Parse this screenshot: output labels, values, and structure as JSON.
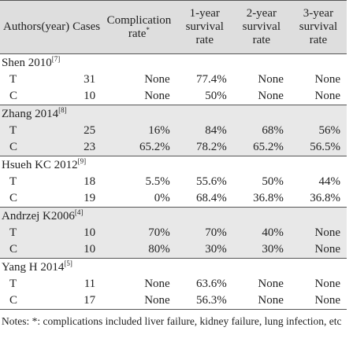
{
  "table": {
    "header": [
      {
        "text": "Authors(year)"
      },
      {
        "text": "Cases"
      },
      {
        "text": "Complication rate",
        "sup": "*"
      },
      {
        "text": "1-year survival rate"
      },
      {
        "text": "2-year survival rate"
      },
      {
        "text": "3-year survival rate"
      }
    ],
    "groups": [
      {
        "name": "Shen 2010",
        "ref": "[7]",
        "rows": [
          [
            "T",
            "31",
            "None",
            "77.4%",
            "None",
            "None"
          ],
          [
            "C",
            "10",
            "None",
            "50%",
            "None",
            "None"
          ]
        ]
      },
      {
        "name": "Zhang 2014",
        "ref": "[8]",
        "rows": [
          [
            "T",
            "25",
            "16%",
            "84%",
            "68%",
            "56%"
          ],
          [
            "C",
            "23",
            "65.2%",
            "78.2%",
            "65.2%",
            "56.5%"
          ]
        ]
      },
      {
        "name": "Hsueh KC 2012",
        "ref": "[9]",
        "rows": [
          [
            "T",
            "18",
            "5.5%",
            "55.6%",
            "50%",
            "44%"
          ],
          [
            "C",
            "19",
            "0%",
            "68.4%",
            "36.8%",
            "36.8%"
          ]
        ]
      },
      {
        "name": "Andrzej K2006",
        "ref": "[4]",
        "rows": [
          [
            "T",
            "10",
            "70%",
            "70%",
            "40%",
            "None"
          ],
          [
            "C",
            "10",
            "80%",
            "30%",
            "30%",
            "None"
          ]
        ]
      },
      {
        "name": "Yang H 2014",
        "ref": "[5]",
        "rows": [
          [
            "T",
            "11",
            "None",
            "63.6%",
            "None",
            "None"
          ],
          [
            "C",
            "17",
            "None",
            "56.3%",
            "None",
            "None"
          ]
        ]
      }
    ]
  },
  "notes": "Notes: *: complications included liver failure, kidney failure, lung infection, etc"
}
